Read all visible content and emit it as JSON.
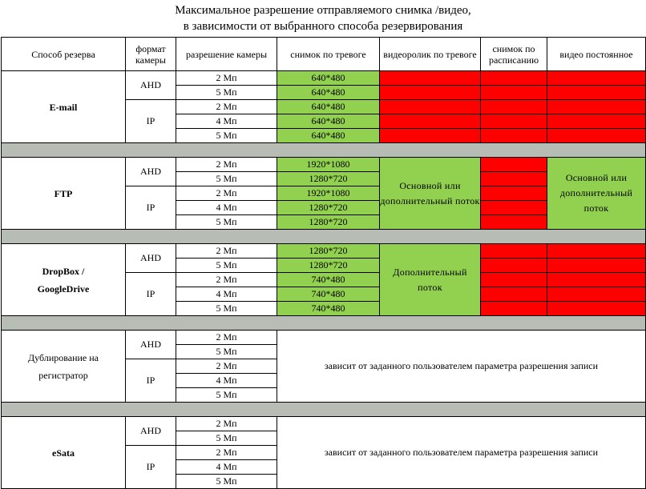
{
  "title": {
    "line1": "Максимальное разрешение отправляемого снимка /видео,",
    "line2": "в зависимости от выбранного способа резервирования"
  },
  "headers": {
    "method": "Способ резерва",
    "format": "формат камеры",
    "camera_resolution": "разрешение камеры",
    "alarm_snapshot": "снимок по тревоге",
    "alarm_video": "видеоролик по тревоге",
    "scheduled_snapshot": "снимок по расписанию",
    "continuous_video": "видео постоянное"
  },
  "formats": {
    "ahd": "AHD",
    "ip": "IP"
  },
  "resolutions": {
    "r2": "2 Мп",
    "r4": "4 Мп",
    "r5": "5 Мп"
  },
  "email": {
    "name": "E-mail",
    "alarm_snapshots": [
      "640*480",
      "640*480",
      "640*480",
      "640*480",
      "640*480"
    ]
  },
  "ftp": {
    "name": "FTP",
    "alarm_snapshots": [
      "1920*1080",
      "1280*720",
      "1920*1080",
      "1280*720",
      "1280*720"
    ],
    "alarm_video": "Основной или дополнительный поток",
    "continuous_video": "Основной или дополнительный поток"
  },
  "cloud": {
    "name_line1": "DropBox /",
    "name_line2": "GoogleDrive",
    "alarm_snapshots": [
      "1280*720",
      "1280*720",
      "740*480",
      "740*480",
      "740*480"
    ],
    "alarm_video": "Дополнительный поток"
  },
  "recorder": {
    "name_line1": "Дублирование на",
    "name_line2": "регистратор",
    "note": "зависит от заданного пользователем параметра разрешения записи"
  },
  "esata": {
    "name": "eSata",
    "note": "зависит от заданного пользователем параметра разрешения записи"
  },
  "colors": {
    "supported": "#92d050",
    "unsupported": "#ff0000",
    "separator": "#b7bcb5"
  }
}
